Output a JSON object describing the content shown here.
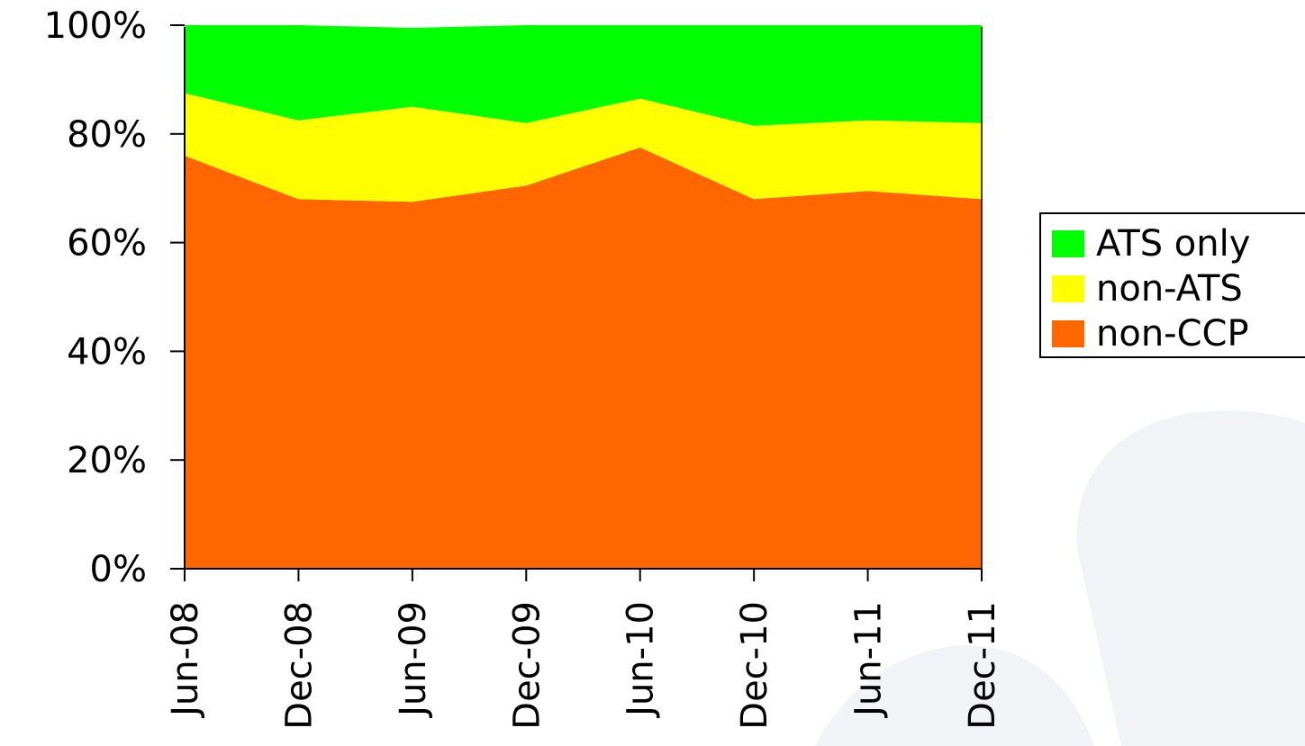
{
  "chart_data": {
    "type": "area",
    "stacked": true,
    "percent": true,
    "categories": [
      "Jun-08",
      "Dec-08",
      "Jun-09",
      "Dec-09",
      "Jun-10",
      "Dec-10",
      "Jun-11",
      "Dec-11"
    ],
    "series": [
      {
        "name": "non-CCP",
        "color": "#FF6600",
        "values": [
          76,
          68,
          67.5,
          70.5,
          77.5,
          68,
          69.5,
          68
        ]
      },
      {
        "name": "non-ATS",
        "color": "#FFFF00",
        "values": [
          11.5,
          14.5,
          17.5,
          11.5,
          9,
          13.5,
          13,
          14
        ]
      },
      {
        "name": "ATS only",
        "color": "#00FF00",
        "values": [
          12.5,
          17.5,
          14.5,
          18,
          13.5,
          18.5,
          17.5,
          18
        ]
      }
    ],
    "y_ticks": [
      "0%",
      "20%",
      "40%",
      "60%",
      "80%",
      "100%"
    ],
    "ylim": [
      0,
      100
    ],
    "legend_position": "right",
    "legend_order": [
      "ATS only",
      "non-ATS",
      "non-CCP"
    ],
    "grid": false,
    "title": "",
    "xlabel": "",
    "ylabel": ""
  }
}
